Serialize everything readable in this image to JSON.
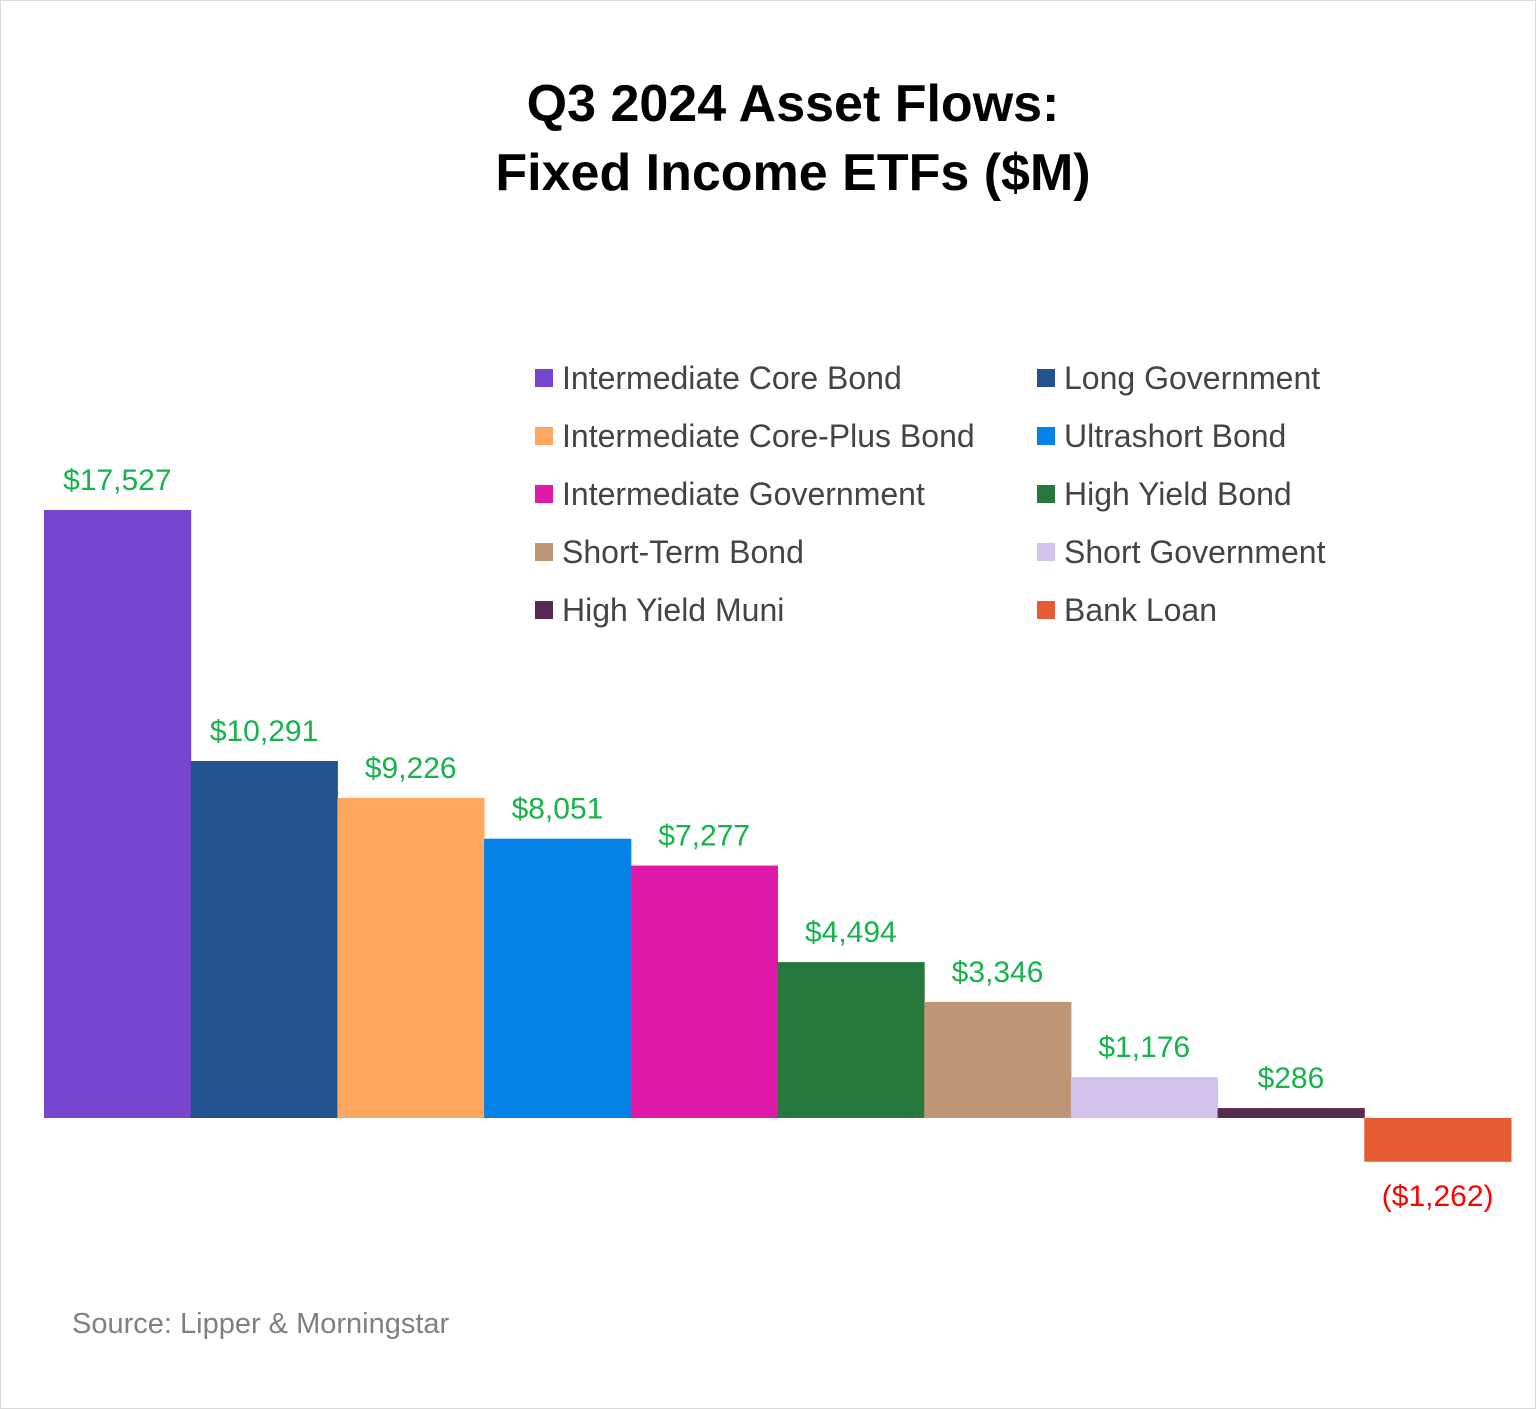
{
  "chart_data": {
    "type": "bar",
    "title": [
      "Q3 2024 Asset Flows:",
      "Fixed Income ETFs ($M)"
    ],
    "categories": [
      "Intermediate Core Bond",
      "Long Government",
      "Intermediate Core-Plus Bond",
      "Ultrashort Bond",
      "Intermediate Government",
      "High Yield Bond",
      "Short-Term Bond",
      "Short Government",
      "High Yield Muni",
      "Bank Loan"
    ],
    "values": [
      17527,
      10291,
      9226,
      8051,
      7277,
      4494,
      3346,
      1176,
      286,
      -1262
    ],
    "data_labels": [
      "$17,527",
      "$10,291",
      "$9,226",
      "$8,051",
      "$7,277",
      "$4,494",
      "$3,346",
      "$1,176",
      "$286",
      "($1,262)"
    ],
    "colors": [
      "#7845D1",
      "#22528F",
      "#FFA860",
      "#0582E8",
      "#DF1AA8",
      "#27783C",
      "#BF9577",
      "#D2C2EE",
      "#582A52",
      "#E85C35"
    ],
    "label_colors": {
      "positive": "#16B24B",
      "negative": "#FF0000"
    },
    "legend": {
      "placement": "top-right",
      "columns": [
        [
          "Intermediate Core Bond",
          "Intermediate Core-Plus Bond",
          "Intermediate Government",
          "Short-Term Bond",
          "High Yield Muni"
        ],
        [
          "Long Government",
          "Ultrashort Bond",
          "High Yield Bond",
          "Short Government",
          "Bank Loan"
        ]
      ]
    },
    "grid": false,
    "axes_visible": false,
    "source": "Source: Lipper & Morningstar"
  }
}
